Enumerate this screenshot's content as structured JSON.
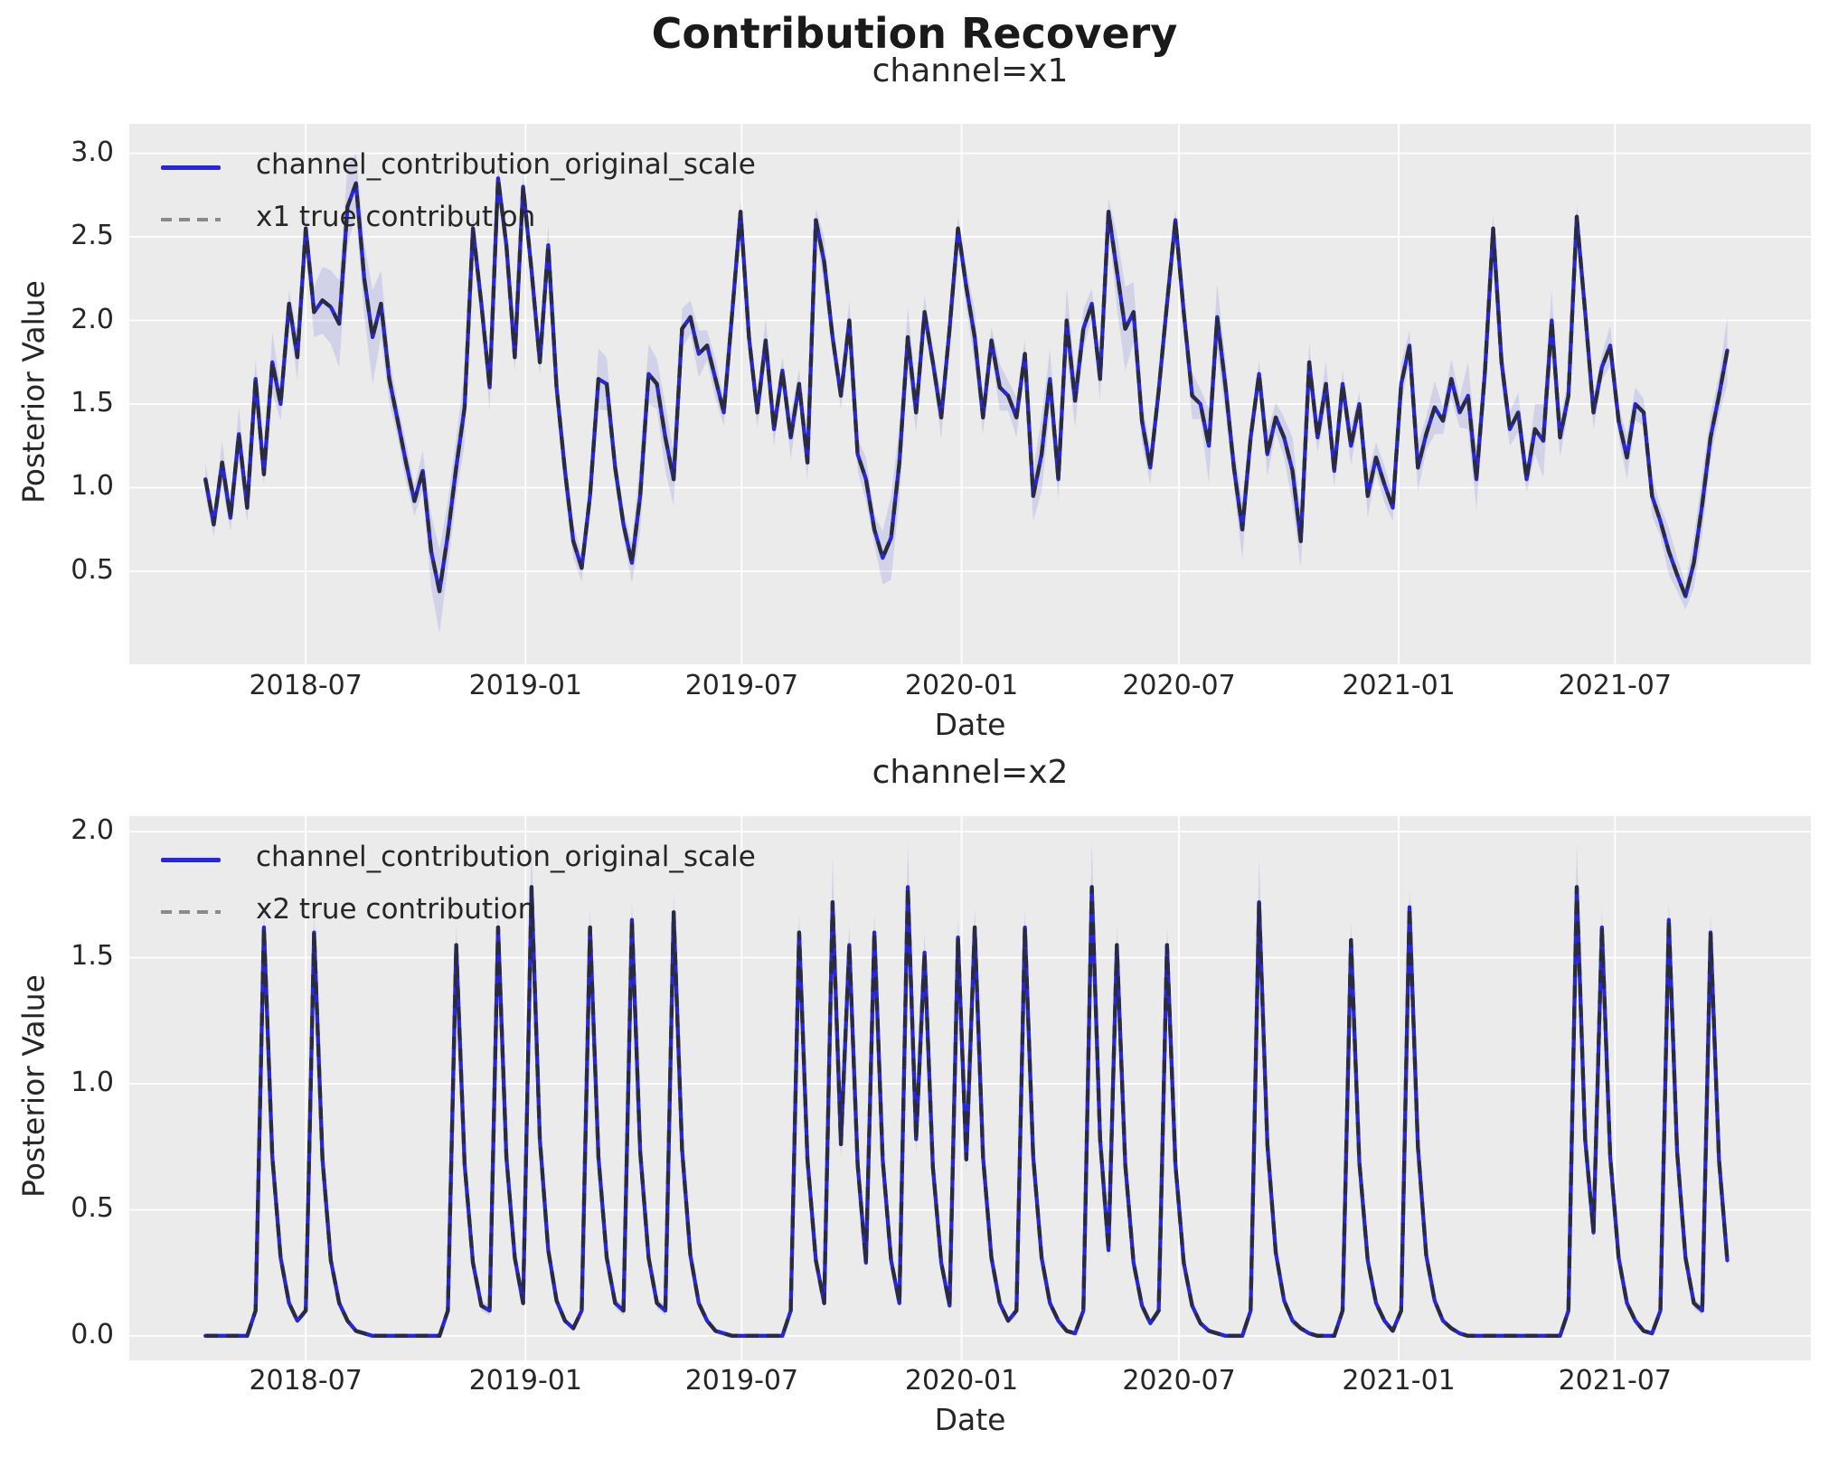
{
  "figure": {
    "title": "Contribution Recovery",
    "colors": {
      "axes_background": "#ebebeb",
      "grid": "#ffffff",
      "posterior_line": "#2727d4",
      "true_dash_on_plot": "#2b2b2b",
      "true_dash_legend": "#8a8a8a",
      "hdi_band": "rgba(35,35,220,0.13)",
      "text": "#262626"
    }
  },
  "chart_data": [
    {
      "type": "line",
      "title": "channel=x1",
      "xlabel": "Date",
      "ylabel": "Posterior Value",
      "grid": true,
      "legend_position": "upper-left",
      "x_start_date": "2018-04-08",
      "x_freq_days": 7,
      "x_tick_labels": [
        "2018-07",
        "2019-01",
        "2019-07",
        "2020-01",
        "2020-07",
        "2021-01",
        "2021-07"
      ],
      "x_tick_weeks": [
        12.0,
        38.29,
        64.14,
        90.43,
        116.43,
        142.71,
        168.57
      ],
      "xlim_weeks": [
        -9.1,
        192.0
      ],
      "yticks": [
        3.0,
        2.5,
        2.0,
        1.5,
        1.0,
        0.5
      ],
      "ytick_labels": [
        "3.0",
        "2.5",
        "2.0",
        "1.5",
        "1.0",
        "0.5"
      ],
      "ylim": [
        -0.057,
        3.176
      ],
      "series": [
        {
          "name": "channel_contribution_original_scale",
          "style": "solid-blue",
          "values": [
            1.05,
            0.78,
            1.15,
            0.82,
            1.32,
            0.88,
            1.65,
            1.08,
            1.75,
            1.5,
            2.1,
            1.78,
            2.55,
            2.05,
            2.12,
            2.08,
            1.98,
            2.68,
            2.82,
            2.25,
            1.9,
            2.1,
            1.65,
            1.4,
            1.15,
            0.92,
            1.1,
            0.62,
            0.38,
            0.72,
            1.12,
            1.48,
            2.55,
            2.1,
            1.6,
            2.85,
            2.45,
            1.78,
            2.8,
            2.3,
            1.75,
            2.45,
            1.6,
            1.1,
            0.68,
            0.52,
            0.95,
            1.65,
            1.62,
            1.12,
            0.78,
            0.55,
            0.95,
            1.68,
            1.62,
            1.3,
            1.05,
            1.95,
            2.02,
            1.8,
            1.85,
            1.65,
            1.45,
            2.05,
            2.65,
            1.9,
            1.45,
            1.88,
            1.35,
            1.7,
            1.3,
            1.62,
            1.15,
            2.6,
            2.35,
            1.9,
            1.55,
            2.0,
            1.2,
            1.05,
            0.75,
            0.58,
            0.7,
            1.15,
            1.9,
            1.45,
            2.05,
            1.75,
            1.42,
            1.95,
            2.55,
            2.2,
            1.9,
            1.42,
            1.88,
            1.6,
            1.55,
            1.42,
            1.8,
            0.95,
            1.2,
            1.65,
            1.05,
            2.0,
            1.52,
            1.95,
            2.1,
            1.65,
            2.65,
            2.3,
            1.95,
            2.05,
            1.4,
            1.12,
            1.58,
            2.1,
            2.6,
            2.05,
            1.55,
            1.5,
            1.25,
            2.02,
            1.6,
            1.12,
            0.75,
            1.3,
            1.68,
            1.2,
            1.42,
            1.3,
            1.1,
            0.68,
            1.75,
            1.3,
            1.62,
            1.1,
            1.62,
            1.25,
            1.5,
            0.95,
            1.18,
            1.02,
            0.88,
            1.62,
            1.85,
            1.12,
            1.32,
            1.48,
            1.4,
            1.65,
            1.45,
            1.55,
            1.05,
            1.68,
            2.55,
            1.75,
            1.35,
            1.45,
            1.05,
            1.35,
            1.28,
            2.0,
            1.3,
            1.55,
            2.62,
            2.05,
            1.45,
            1.72,
            1.85,
            1.4,
            1.18,
            1.5,
            1.45,
            0.95,
            0.8,
            0.62,
            0.48,
            0.35,
            0.55,
            0.9,
            1.3,
            1.55,
            1.82
          ]
        },
        {
          "name": "x1 true contribution",
          "style": "dashed-grey",
          "values_equal_to_series": 0
        }
      ],
      "hdi_band": {
        "center_series": 0,
        "half_width": [
          0.1,
          0.07,
          0.13,
          0.08,
          0.16,
          0.09,
          0.12,
          0.06,
          0.18,
          0.1,
          0.08,
          0.14,
          0.12,
          0.15,
          0.2,
          0.22,
          0.26,
          0.24,
          0.18,
          0.22,
          0.28,
          0.2,
          0.14,
          0.1,
          0.12,
          0.09,
          0.12,
          0.22,
          0.25,
          0.2,
          0.18,
          0.22,
          0.12,
          0.1,
          0.14,
          0.08,
          0.12,
          0.09,
          0.07,
          0.1,
          0.08,
          0.12,
          0.09,
          0.13,
          0.1,
          0.08,
          0.12,
          0.18,
          0.16,
          0.1,
          0.08,
          0.12,
          0.22,
          0.18,
          0.15,
          0.2,
          0.16,
          0.12,
          0.1,
          0.14,
          0.09,
          0.12,
          0.08,
          0.1,
          0.07,
          0.12,
          0.09,
          0.14,
          0.1,
          0.08,
          0.13,
          0.09,
          0.11,
          0.07,
          0.15,
          0.1,
          0.08,
          0.12,
          0.1,
          0.13,
          0.09,
          0.16,
          0.25,
          0.22,
          0.18,
          0.12,
          0.1,
          0.08,
          0.13,
          0.09,
          0.07,
          0.12,
          0.16,
          0.1,
          0.08,
          0.14,
          0.09,
          0.12,
          0.08,
          0.15,
          0.22,
          0.18,
          0.12,
          0.2,
          0.16,
          0.12,
          0.09,
          0.13,
          0.08,
          0.22,
          0.25,
          0.18,
          0.14,
          0.1,
          0.08,
          0.12,
          0.07,
          0.1,
          0.14,
          0.09,
          0.22,
          0.2,
          0.16,
          0.12,
          0.18,
          0.1,
          0.08,
          0.13,
          0.09,
          0.12,
          0.2,
          0.16,
          0.12,
          0.09,
          0.14,
          0.1,
          0.08,
          0.12,
          0.07,
          0.13,
          0.09,
          0.11,
          0.08,
          0.12,
          0.09,
          0.14,
          0.1,
          0.16,
          0.08,
          0.12,
          0.09,
          0.2,
          0.18,
          0.13,
          0.08,
          0.14,
          0.1,
          0.12,
          0.08,
          0.15,
          0.22,
          0.18,
          0.12,
          0.09,
          0.07,
          0.13,
          0.1,
          0.08,
          0.12,
          0.09,
          0.13,
          0.1,
          0.08,
          0.12,
          0.09,
          0.14,
          0.1,
          0.08,
          0.15,
          0.18,
          0.14,
          0.12,
          0.2
        ]
      }
    },
    {
      "type": "line",
      "title": "channel=x2",
      "xlabel": "Date",
      "ylabel": "Posterior Value",
      "grid": true,
      "legend_position": "upper-left",
      "x_start_date": "2018-04-08",
      "x_freq_days": 7,
      "x_tick_labels": [
        "2018-07",
        "2019-01",
        "2019-07",
        "2020-01",
        "2020-07",
        "2021-01",
        "2021-07"
      ],
      "x_tick_weeks": [
        12.0,
        38.29,
        64.14,
        90.43,
        116.43,
        142.71,
        168.57
      ],
      "xlim_weeks": [
        -9.1,
        192.0
      ],
      "yticks": [
        2.0,
        1.5,
        1.0,
        0.5,
        0.0
      ],
      "ytick_labels": [
        "2.0",
        "1.5",
        "1.0",
        "0.5",
        "0.0"
      ],
      "ylim": [
        -0.097,
        2.061
      ],
      "series": [
        {
          "name": "channel_contribution_original_scale",
          "style": "solid-blue",
          "values": [
            0,
            0,
            0,
            0,
            0,
            0,
            0.1,
            1.62,
            0.71,
            0.31,
            0.13,
            0.06,
            0.1,
            1.6,
            0.7,
            0.3,
            0.13,
            0.06,
            0.02,
            0.01,
            0,
            0,
            0,
            0,
            0,
            0,
            0,
            0,
            0,
            0.1,
            1.55,
            0.68,
            0.29,
            0.12,
            0.1,
            1.62,
            0.71,
            0.31,
            0.13,
            1.78,
            0.78,
            0.34,
            0.14,
            0.06,
            0.03,
            0.1,
            1.62,
            0.71,
            0.31,
            0.13,
            0.1,
            1.65,
            0.73,
            0.31,
            0.13,
            0.1,
            1.68,
            0.74,
            0.32,
            0.13,
            0.06,
            0.02,
            0.01,
            0,
            0,
            0,
            0,
            0,
            0,
            0,
            0.1,
            1.6,
            0.7,
            0.3,
            0.13,
            1.72,
            0.76,
            1.55,
            0.68,
            0.29,
            1.6,
            0.7,
            0.3,
            0.13,
            1.78,
            0.78,
            1.52,
            0.67,
            0.29,
            0.12,
            1.58,
            0.7,
            1.62,
            0.71,
            0.31,
            0.13,
            0.06,
            0.1,
            1.62,
            0.71,
            0.31,
            0.13,
            0.06,
            0.02,
            0.01,
            0.1,
            1.78,
            0.78,
            0.34,
            1.55,
            0.68,
            0.29,
            0.12,
            0.05,
            0.1,
            1.55,
            0.68,
            0.29,
            0.12,
            0.05,
            0.02,
            0.01,
            0,
            0,
            0,
            0.1,
            1.72,
            0.76,
            0.33,
            0.14,
            0.06,
            0.03,
            0.01,
            0,
            0,
            0,
            0.1,
            1.57,
            0.69,
            0.3,
            0.13,
            0.06,
            0.02,
            0.1,
            1.7,
            0.75,
            0.32,
            0.14,
            0.06,
            0.03,
            0.01,
            0,
            0,
            0,
            0,
            0,
            0,
            0,
            0,
            0,
            0,
            0,
            0,
            0.1,
            1.78,
            0.78,
            0.41,
            1.62,
            0.71,
            0.31,
            0.13,
            0.06,
            0.02,
            0.01,
            0.1,
            1.65,
            0.73,
            0.31,
            0.13,
            0.1,
            1.6,
            0.7,
            0.3
          ]
        },
        {
          "name": "x2 true contribution",
          "style": "dashed-grey",
          "values_equal_to_series": 0
        }
      ],
      "hdi_band": {
        "center_series": 0,
        "half_width": [
          0.01,
          0.01,
          0.01,
          0.01,
          0.01,
          0.01,
          0.02,
          0.08,
          0.05,
          0.03,
          0.02,
          0.01,
          0.02,
          0.08,
          0.05,
          0.03,
          0.02,
          0.01,
          0.01,
          0.01,
          0.01,
          0.01,
          0.01,
          0.01,
          0.01,
          0.01,
          0.01,
          0.01,
          0.01,
          0.02,
          0.08,
          0.05,
          0.03,
          0.02,
          0.02,
          0.08,
          0.05,
          0.03,
          0.02,
          0.18,
          0.06,
          0.04,
          0.02,
          0.01,
          0.01,
          0.02,
          0.08,
          0.05,
          0.03,
          0.02,
          0.02,
          0.08,
          0.05,
          0.03,
          0.02,
          0.02,
          0.08,
          0.05,
          0.03,
          0.02,
          0.01,
          0.01,
          0.01,
          0.01,
          0.01,
          0.01,
          0.01,
          0.01,
          0.01,
          0.01,
          0.02,
          0.08,
          0.05,
          0.03,
          0.02,
          0.18,
          0.06,
          0.08,
          0.05,
          0.03,
          0.08,
          0.05,
          0.03,
          0.02,
          0.18,
          0.06,
          0.08,
          0.05,
          0.03,
          0.02,
          0.08,
          0.05,
          0.08,
          0.05,
          0.03,
          0.02,
          0.01,
          0.02,
          0.08,
          0.05,
          0.03,
          0.02,
          0.01,
          0.01,
          0.01,
          0.02,
          0.18,
          0.06,
          0.04,
          0.08,
          0.05,
          0.03,
          0.02,
          0.01,
          0.02,
          0.08,
          0.05,
          0.03,
          0.02,
          0.01,
          0.01,
          0.01,
          0.01,
          0.01,
          0.01,
          0.02,
          0.18,
          0.06,
          0.04,
          0.02,
          0.02,
          0.01,
          0.01,
          0.01,
          0.01,
          0.01,
          0.02,
          0.08,
          0.05,
          0.03,
          0.02,
          0.01,
          0.01,
          0.02,
          0.08,
          0.05,
          0.03,
          0.02,
          0.01,
          0.01,
          0.01,
          0.01,
          0.01,
          0.01,
          0.01,
          0.01,
          0.01,
          0.01,
          0.01,
          0.01,
          0.01,
          0.01,
          0.01,
          0.02,
          0.18,
          0.06,
          0.04,
          0.08,
          0.05,
          0.03,
          0.02,
          0.01,
          0.01,
          0.01,
          0.02,
          0.08,
          0.05,
          0.03,
          0.02,
          0.02,
          0.08,
          0.05,
          0.03
        ]
      }
    }
  ]
}
